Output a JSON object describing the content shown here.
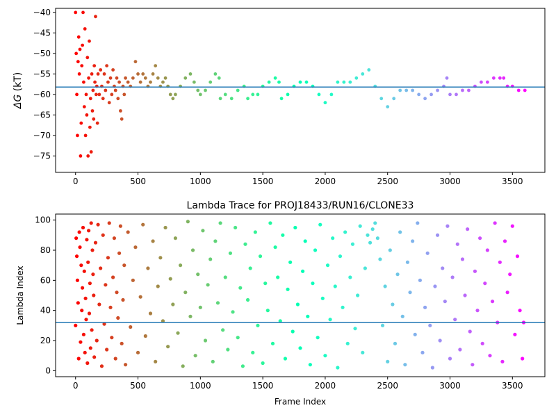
{
  "chart_data": [
    {
      "type": "scatter",
      "title": "",
      "xlabel": "",
      "ylabel_symbol": "ΔG",
      "ylabel_unit": " (kT)",
      "xlim": [
        -160,
        3760
      ],
      "ylim": [
        -79,
        -39
      ],
      "xticks": [
        0,
        500,
        1000,
        1500,
        2000,
        2500,
        3000,
        3500
      ],
      "yticks": [
        -75,
        -70,
        -65,
        -60,
        -55,
        -50,
        -45,
        -40
      ],
      "hline": -58.2,
      "hline_color": "#1f77b4",
      "colormap": "rainbow",
      "frames_total": 3600,
      "points": [
        [
          0,
          -40
        ],
        [
          5,
          -50
        ],
        [
          10,
          -60
        ],
        [
          15,
          -70
        ],
        [
          20,
          -52
        ],
        [
          25,
          -46
        ],
        [
          30,
          -55
        ],
        [
          35,
          -49
        ],
        [
          40,
          -75
        ],
        [
          45,
          -67
        ],
        [
          50,
          -53
        ],
        [
          55,
          -48
        ],
        [
          60,
          -40
        ],
        [
          65,
          -57
        ],
        [
          70,
          -63
        ],
        [
          75,
          -44
        ],
        [
          80,
          -70
        ],
        [
          85,
          -60
        ],
        [
          90,
          -65
        ],
        [
          95,
          -51
        ],
        [
          100,
          -75
        ],
        [
          105,
          -56
        ],
        [
          110,
          -47
        ],
        [
          115,
          -68
        ],
        [
          120,
          -61
        ],
        [
          125,
          -74
        ],
        [
          130,
          -55
        ],
        [
          135,
          -64
        ],
        [
          140,
          -59
        ],
        [
          145,
          -66
        ],
        [
          150,
          -53
        ],
        [
          155,
          -57
        ],
        [
          160,
          -41
        ],
        [
          165,
          -60
        ],
        [
          170,
          -58
        ],
        [
          175,
          -67
        ],
        [
          180,
          -55
        ],
        [
          190,
          -60
        ],
        [
          200,
          -54
        ],
        [
          210,
          -58
        ],
        [
          220,
          -61
        ],
        [
          230,
          -55
        ],
        [
          240,
          -59
        ],
        [
          250,
          -53
        ],
        [
          260,
          -57
        ],
        [
          270,
          -62
        ],
        [
          280,
          -56
        ],
        [
          290,
          -60
        ],
        [
          300,
          -54
        ],
        [
          310,
          -58
        ],
        [
          320,
          -59
        ],
        [
          330,
          -56
        ],
        [
          340,
          -61
        ],
        [
          350,
          -57
        ],
        [
          360,
          -64
        ],
        [
          370,
          -66
        ],
        [
          380,
          -58
        ],
        [
          390,
          -60
        ],
        [
          400,
          -56
        ],
        [
          420,
          -57
        ],
        [
          440,
          -58
        ],
        [
          460,
          -56
        ],
        [
          480,
          -52
        ],
        [
          500,
          -55
        ],
        [
          520,
          -57
        ],
        [
          540,
          -55
        ],
        [
          560,
          -56
        ],
        [
          580,
          -58
        ],
        [
          600,
          -57
        ],
        [
          620,
          -55
        ],
        [
          640,
          -53
        ],
        [
          660,
          -56
        ],
        [
          680,
          -58
        ],
        [
          700,
          -57
        ],
        [
          720,
          -56
        ],
        [
          740,
          -58
        ],
        [
          760,
          -60
        ],
        [
          780,
          -61
        ],
        [
          800,
          -60
        ],
        [
          840,
          -58
        ],
        [
          880,
          -56
        ],
        [
          920,
          -55
        ],
        [
          950,
          -57
        ],
        [
          980,
          -59
        ],
        [
          1000,
          -60
        ],
        [
          1040,
          -59
        ],
        [
          1080,
          -57
        ],
        [
          1120,
          -55
        ],
        [
          1150,
          -56
        ],
        [
          1160,
          -61
        ],
        [
          1200,
          -60
        ],
        [
          1250,
          -61
        ],
        [
          1300,
          -59
        ],
        [
          1350,
          -58
        ],
        [
          1380,
          -61
        ],
        [
          1420,
          -60
        ],
        [
          1460,
          -60
        ],
        [
          1500,
          -58
        ],
        [
          1550,
          -57
        ],
        [
          1600,
          -56
        ],
        [
          1630,
          -57
        ],
        [
          1650,
          -61
        ],
        [
          1700,
          -60
        ],
        [
          1750,
          -58
        ],
        [
          1800,
          -57
        ],
        [
          1850,
          -57
        ],
        [
          1900,
          -58
        ],
        [
          1950,
          -60
        ],
        [
          2000,
          -62
        ],
        [
          2050,
          -60
        ],
        [
          2100,
          -57
        ],
        [
          2150,
          -57
        ],
        [
          2200,
          -57
        ],
        [
          2250,
          -56
        ],
        [
          2300,
          -55
        ],
        [
          2350,
          -54
        ],
        [
          2400,
          -58
        ],
        [
          2450,
          -61
        ],
        [
          2500,
          -63
        ],
        [
          2550,
          -61
        ],
        [
          2600,
          -59
        ],
        [
          2650,
          -59
        ],
        [
          2700,
          -59
        ],
        [
          2750,
          -60
        ],
        [
          2800,
          -61
        ],
        [
          2850,
          -60
        ],
        [
          2900,
          -59
        ],
        [
          2950,
          -58
        ],
        [
          2975,
          -56
        ],
        [
          3000,
          -60
        ],
        [
          3050,
          -60
        ],
        [
          3100,
          -59
        ],
        [
          3150,
          -59
        ],
        [
          3200,
          -58
        ],
        [
          3250,
          -57
        ],
        [
          3300,
          -57
        ],
        [
          3350,
          -56
        ],
        [
          3400,
          -56
        ],
        [
          3430,
          -56
        ],
        [
          3460,
          -58
        ],
        [
          3500,
          -58
        ],
        [
          3550,
          -59
        ],
        [
          3600,
          -59
        ]
      ]
    },
    {
      "type": "scatter",
      "title": "Lambda Trace for PROJ18433/RUN16/CLONE33",
      "xlabel": "Frame Index",
      "ylabel": "Lambda Index",
      "xlim": [
        -160,
        3760
      ],
      "ylim": [
        -4,
        104
      ],
      "xticks": [
        0,
        500,
        1000,
        1500,
        2000,
        2500,
        3000,
        3500
      ],
      "yticks": [
        0,
        20,
        40,
        60,
        80,
        100
      ],
      "hline": 32,
      "hline_color": "#1f77b4",
      "colormap": "rainbow",
      "frames_total": 3600,
      "points": [
        [
          0,
          30
        ],
        [
          5,
          88
        ],
        [
          10,
          76
        ],
        [
          15,
          60
        ],
        [
          20,
          45
        ],
        [
          25,
          8
        ],
        [
          30,
          92
        ],
        [
          35,
          82
        ],
        [
          40,
          19
        ],
        [
          45,
          70
        ],
        [
          50,
          40
        ],
        [
          55,
          55
        ],
        [
          60,
          95
        ],
        [
          65,
          24
        ],
        [
          70,
          66
        ],
        [
          75,
          12
        ],
        [
          80,
          48
        ],
        [
          85,
          34
        ],
        [
          90,
          87
        ],
        [
          95,
          5
        ],
        [
          100,
          72
        ],
        [
          105,
          93
        ],
        [
          110,
          38
        ],
        [
          115,
          58
        ],
        [
          120,
          15
        ],
        [
          125,
          98
        ],
        [
          130,
          27
        ],
        [
          135,
          80
        ],
        [
          140,
          64
        ],
        [
          145,
          50
        ],
        [
          150,
          9
        ],
        [
          160,
          85
        ],
        [
          170,
          20
        ],
        [
          180,
          97
        ],
        [
          190,
          44
        ],
        [
          200,
          68
        ],
        [
          210,
          3
        ],
        [
          220,
          90
        ],
        [
          230,
          31
        ],
        [
          240,
          57
        ],
        [
          250,
          14
        ],
        [
          260,
          75
        ],
        [
          270,
          98
        ],
        [
          280,
          42
        ],
        [
          290,
          22
        ],
        [
          300,
          62
        ],
        [
          310,
          88
        ],
        [
          320,
          8
        ],
        [
          330,
          52
        ],
        [
          340,
          35
        ],
        [
          350,
          78
        ],
        [
          360,
          96
        ],
        [
          370,
          18
        ],
        [
          380,
          47
        ],
        [
          390,
          70
        ],
        [
          400,
          4
        ],
        [
          420,
          92
        ],
        [
          440,
          29
        ],
        [
          460,
          60
        ],
        [
          480,
          82
        ],
        [
          500,
          12
        ],
        [
          520,
          49
        ],
        [
          540,
          97
        ],
        [
          560,
          23
        ],
        [
          580,
          68
        ],
        [
          600,
          38
        ],
        [
          620,
          86
        ],
        [
          640,
          6
        ],
        [
          660,
          56
        ],
        [
          680,
          75
        ],
        [
          700,
          33
        ],
        [
          720,
          95
        ],
        [
          740,
          16
        ],
        [
          760,
          61
        ],
        [
          780,
          44
        ],
        [
          800,
          88
        ],
        [
          820,
          25
        ],
        [
          840,
          70
        ],
        [
          860,
          3
        ],
        [
          880,
          52
        ],
        [
          900,
          99
        ],
        [
          920,
          36
        ],
        [
          940,
          80
        ],
        [
          960,
          10
        ],
        [
          980,
          64
        ],
        [
          1000,
          42
        ],
        [
          1020,
          93
        ],
        [
          1040,
          20
        ],
        [
          1060,
          57
        ],
        [
          1080,
          74
        ],
        [
          1100,
          6
        ],
        [
          1120,
          86
        ],
        [
          1140,
          45
        ],
        [
          1160,
          98
        ],
        [
          1180,
          27
        ],
        [
          1200,
          62
        ],
        [
          1220,
          14
        ],
        [
          1240,
          78
        ],
        [
          1260,
          39
        ],
        [
          1280,
          95
        ],
        [
          1300,
          22
        ],
        [
          1320,
          55
        ],
        [
          1340,
          3
        ],
        [
          1360,
          84
        ],
        [
          1380,
          47
        ],
        [
          1400,
          68
        ],
        [
          1420,
          12
        ],
        [
          1440,
          92
        ],
        [
          1460,
          30
        ],
        [
          1480,
          76
        ],
        [
          1500,
          5
        ],
        [
          1520,
          58
        ],
        [
          1540,
          40
        ],
        [
          1560,
          98
        ],
        [
          1580,
          18
        ],
        [
          1600,
          82
        ],
        [
          1620,
          62
        ],
        [
          1640,
          33
        ],
        [
          1660,
          90
        ],
        [
          1680,
          8
        ],
        [
          1700,
          54
        ],
        [
          1720,
          72
        ],
        [
          1740,
          26
        ],
        [
          1760,
          95
        ],
        [
          1780,
          44
        ],
        [
          1800,
          15
        ],
        [
          1820,
          66
        ],
        [
          1840,
          86
        ],
        [
          1860,
          36
        ],
        [
          1880,
          4
        ],
        [
          1900,
          58
        ],
        [
          1920,
          80
        ],
        [
          1940,
          22
        ],
        [
          1960,
          97
        ],
        [
          1980,
          48
        ],
        [
          2000,
          10
        ],
        [
          2020,
          70
        ],
        [
          2040,
          34
        ],
        [
          2060,
          88
        ],
        [
          2080,
          56
        ],
        [
          2100,
          2
        ],
        [
          2120,
          76
        ],
        [
          2140,
          42
        ],
        [
          2160,
          92
        ],
        [
          2180,
          18
        ],
        [
          2200,
          62
        ],
        [
          2220,
          84
        ],
        [
          2240,
          28
        ],
        [
          2260,
          50
        ],
        [
          2280,
          96
        ],
        [
          2300,
          12
        ],
        [
          2320,
          68
        ],
        [
          2340,
          90
        ],
        [
          2360,
          85
        ],
        [
          2380,
          94
        ],
        [
          2400,
          98
        ],
        [
          2420,
          88
        ],
        [
          2440,
          74
        ],
        [
          2460,
          30
        ],
        [
          2480,
          56
        ],
        [
          2500,
          6
        ],
        [
          2520,
          80
        ],
        [
          2540,
          44
        ],
        [
          2560,
          18
        ],
        [
          2580,
          64
        ],
        [
          2600,
          92
        ],
        [
          2620,
          36
        ],
        [
          2640,
          4
        ],
        [
          2660,
          72
        ],
        [
          2680,
          52
        ],
        [
          2700,
          86
        ],
        [
          2720,
          24
        ],
        [
          2740,
          98
        ],
        [
          2760,
          60
        ],
        [
          2780,
          12
        ],
        [
          2800,
          42
        ],
        [
          2820,
          78
        ],
        [
          2840,
          30
        ],
        [
          2860,
          2
        ],
        [
          2880,
          56
        ],
        [
          2900,
          90
        ],
        [
          2920,
          20
        ],
        [
          2940,
          68
        ],
        [
          2960,
          46
        ],
        [
          2980,
          96
        ],
        [
          3000,
          8
        ],
        [
          3020,
          62
        ],
        [
          3040,
          34
        ],
        [
          3060,
          84
        ],
        [
          3080,
          14
        ],
        [
          3100,
          74
        ],
        [
          3120,
          50
        ],
        [
          3140,
          94
        ],
        [
          3160,
          26
        ],
        [
          3180,
          4
        ],
        [
          3200,
          66
        ],
        [
          3220,
          40
        ],
        [
          3240,
          88
        ],
        [
          3260,
          18
        ],
        [
          3280,
          58
        ],
        [
          3300,
          80
        ],
        [
          3320,
          10
        ],
        [
          3340,
          46
        ],
        [
          3360,
          98
        ],
        [
          3380,
          32
        ],
        [
          3400,
          72
        ],
        [
          3420,
          6
        ],
        [
          3440,
          86
        ],
        [
          3460,
          52
        ],
        [
          3480,
          64
        ],
        [
          3500,
          96
        ],
        [
          3520,
          24
        ],
        [
          3540,
          76
        ],
        [
          3560,
          40
        ],
        [
          3580,
          8
        ],
        [
          3590,
          32
        ]
      ]
    }
  ]
}
